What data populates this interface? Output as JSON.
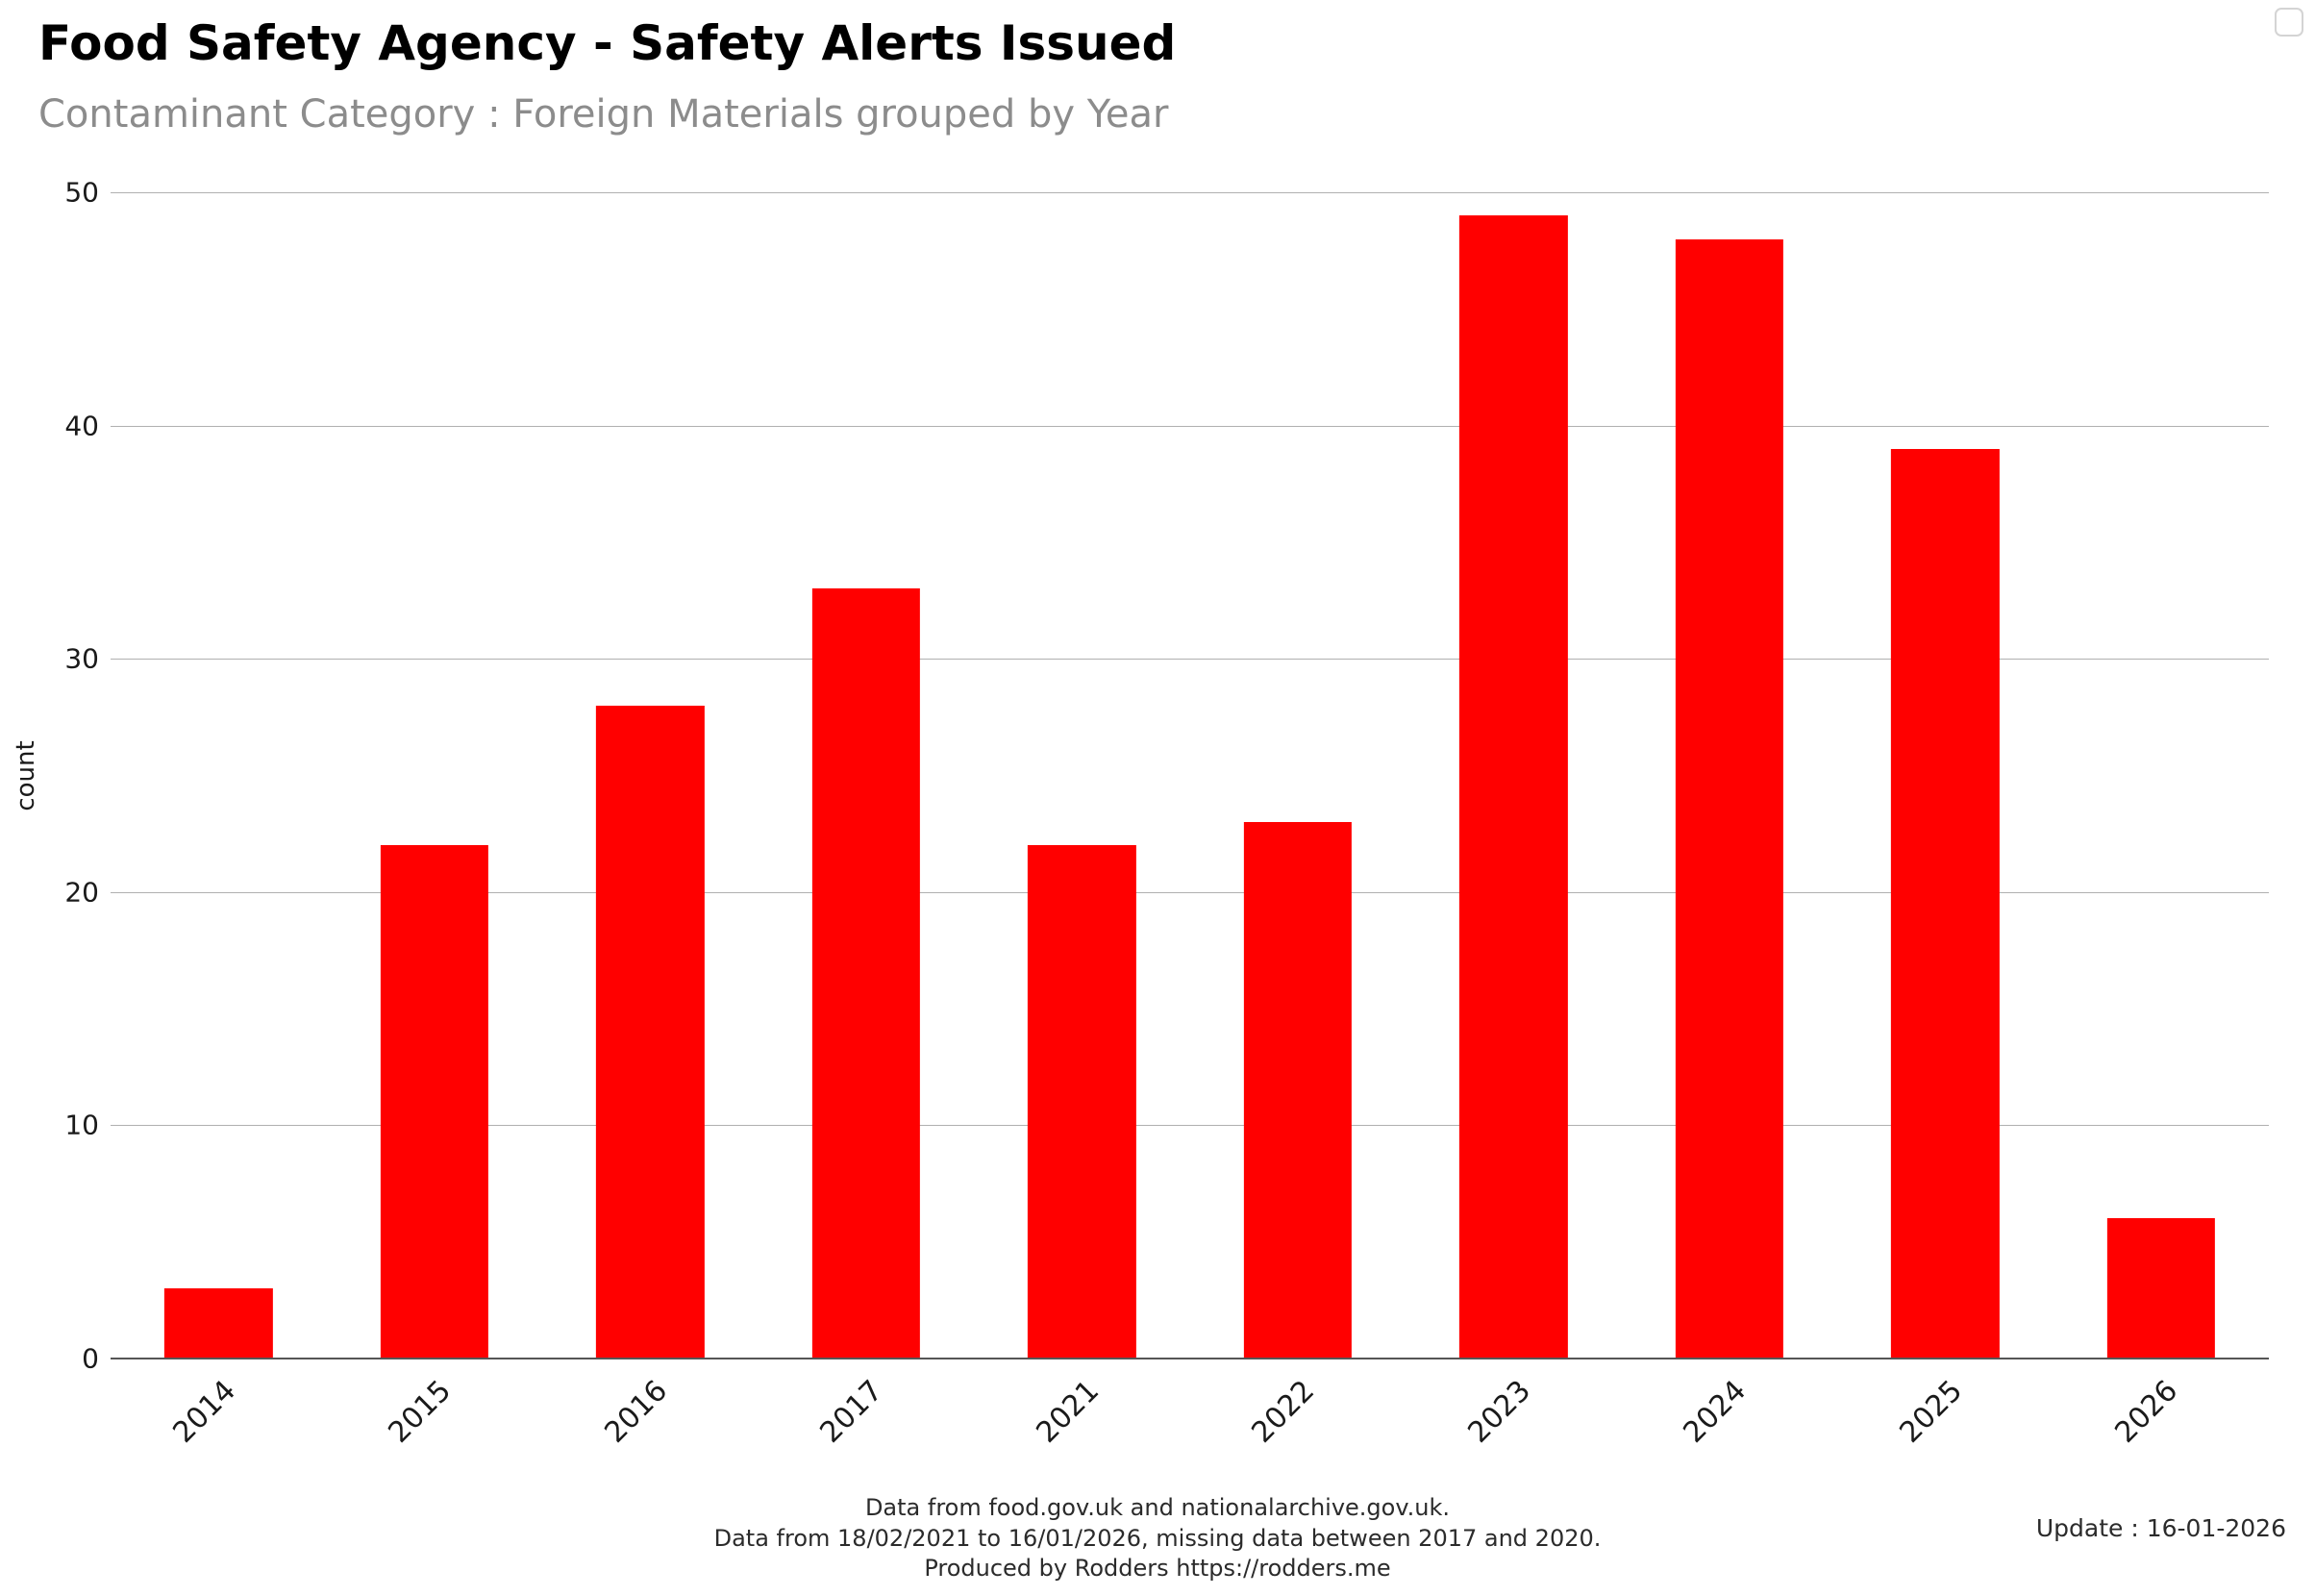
{
  "header": {
    "title": "Food Safety Agency - Safety Alerts Issued",
    "subtitle": "Contaminant Category : Foreign Materials grouped by Year"
  },
  "chart_data": {
    "type": "bar",
    "categories": [
      "2014",
      "2015",
      "2016",
      "2017",
      "2021",
      "2022",
      "2023",
      "2024",
      "2025",
      "2026"
    ],
    "values": [
      3,
      22,
      28,
      33,
      22,
      23,
      49,
      48,
      39,
      6
    ],
    "title": "Food Safety Agency - Safety Alerts Issued",
    "subtitle": "Contaminant Category : Foreign Materials grouped by Year",
    "xlabel": "",
    "ylabel": "count",
    "ylim": [
      0,
      50
    ],
    "yticks": [
      0,
      10,
      20,
      30,
      40,
      50
    ],
    "bar_color": "#FF0000",
    "grid": "horizontal",
    "legend_position": "top-right"
  },
  "footer": {
    "line1": "Data from food.gov.uk and nationalarchive.gov.uk.",
    "line2": "Data from 18/02/2021 to 16/01/2026, missing data between 2017 and 2020.",
    "line3": "Produced by Rodders https://rodders.me",
    "update": "Update : 16-01-2026"
  }
}
